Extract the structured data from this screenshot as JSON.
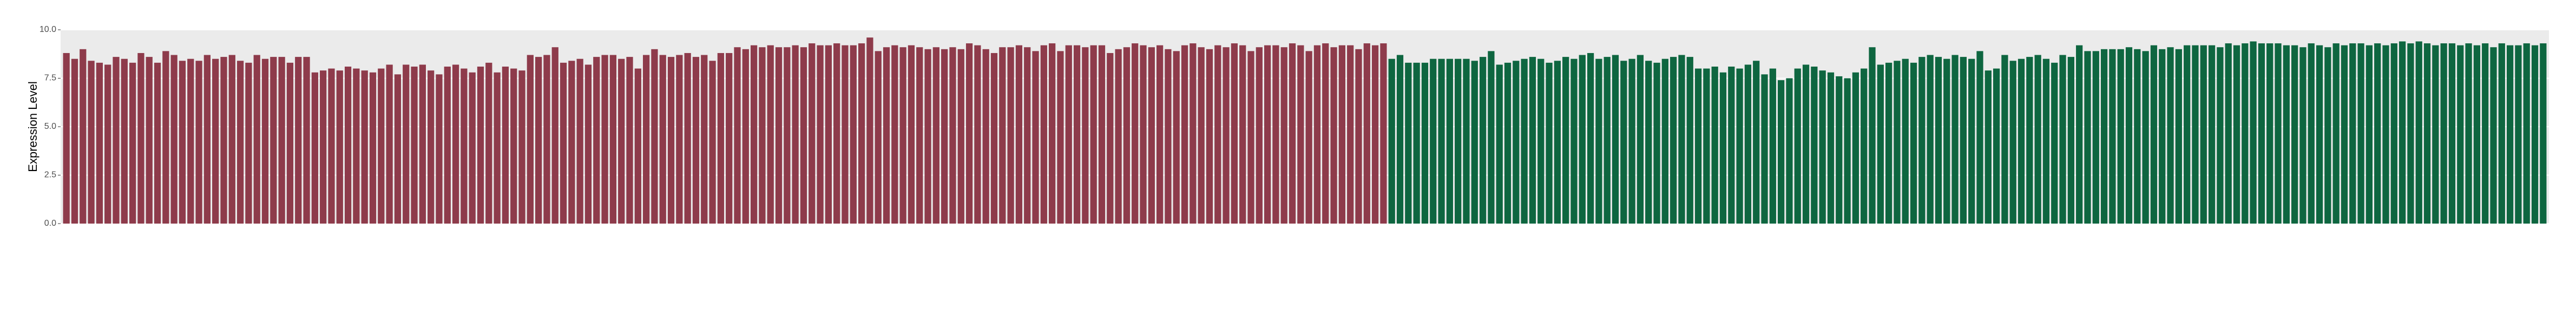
{
  "chart_data": {
    "type": "bar",
    "y_label": "Expression Level",
    "ylim": [
      0,
      10
    ],
    "yticks": [
      {
        "value": 0,
        "label": "0.0"
      },
      {
        "value": 2.5,
        "label": "2.5"
      },
      {
        "value": 5,
        "label": "5.0"
      },
      {
        "value": 7.5,
        "label": "7.5"
      },
      {
        "value": 10,
        "label": "10.0"
      }
    ],
    "grid": true,
    "series": [
      {
        "color": "#8e3b4b",
        "values": [
          8.8,
          8.5,
          9.0,
          8.4,
          8.3,
          8.2,
          8.6,
          8.5,
          8.3,
          8.8,
          8.6,
          8.3,
          8.9,
          8.7,
          8.4,
          8.5,
          8.4,
          8.7,
          8.5,
          8.6,
          8.7,
          8.4,
          8.3,
          8.7,
          8.5,
          8.6,
          8.6,
          8.3,
          8.6,
          8.6,
          7.8,
          7.9,
          8.0,
          7.9,
          8.1,
          8.0,
          7.9,
          7.8,
          8.0,
          8.2,
          7.7,
          8.2,
          8.1,
          8.2,
          7.9,
          7.7,
          8.1,
          8.2,
          8.0,
          7.8,
          8.1,
          8.3,
          7.8,
          8.1,
          8.0,
          7.9,
          8.7,
          8.6,
          8.7,
          9.1,
          8.3,
          8.4,
          8.5,
          8.2,
          8.6,
          8.7,
          8.7,
          8.5,
          8.6,
          8.0,
          8.7,
          9.0,
          8.7,
          8.6,
          8.7,
          8.8,
          8.6,
          8.7,
          8.4,
          8.8,
          8.8,
          9.1,
          9.0,
          9.2,
          9.1,
          9.2,
          9.1,
          9.1,
          9.2,
          9.1,
          9.3,
          9.2,
          9.2,
          9.3,
          9.2,
          9.2,
          9.3,
          9.6,
          8.9,
          9.1,
          9.2,
          9.1,
          9.2,
          9.1,
          9.0,
          9.1,
          9.0,
          9.1,
          9.0,
          9.3,
          9.2,
          9.0,
          8.8,
          9.1,
          9.1,
          9.2,
          9.1,
          8.9,
          9.2,
          9.3,
          8.9,
          9.2,
          9.2,
          9.1,
          9.2,
          9.2,
          8.8,
          9.0,
          9.1,
          9.3,
          9.2,
          9.1,
          9.2,
          9.0,
          8.9,
          9.2,
          9.3,
          9.1,
          9.0,
          9.2,
          9.1,
          9.3,
          9.2,
          8.9,
          9.1,
          9.2,
          9.2,
          9.1,
          9.3,
          9.2,
          8.9,
          9.2,
          9.3,
          9.1,
          9.2,
          9.2,
          9.0,
          9.3,
          9.2,
          9.3
        ]
      },
      {
        "color": "#0e6640",
        "values": [
          8.5,
          8.7,
          8.3,
          8.3,
          8.3,
          8.5,
          8.5,
          8.5,
          8.5,
          8.5,
          8.4,
          8.6,
          8.9,
          8.2,
          8.3,
          8.4,
          8.5,
          8.6,
          8.5,
          8.3,
          8.4,
          8.6,
          8.5,
          8.7,
          8.8,
          8.5,
          8.6,
          8.7,
          8.4,
          8.5,
          8.7,
          8.4,
          8.3,
          8.5,
          8.6,
          8.7,
          8.6,
          8.0,
          8.0,
          8.1,
          7.8,
          8.1,
          8.0,
          8.2,
          8.4,
          7.7,
          8.0,
          7.4,
          7.5,
          8.0,
          8.2,
          8.1,
          7.9,
          7.8,
          7.6,
          7.5,
          7.8,
          8.0,
          9.1,
          8.2,
          8.3,
          8.4,
          8.5,
          8.3,
          8.6,
          8.7,
          8.6,
          8.5,
          8.7,
          8.6,
          8.5,
          8.9,
          7.9,
          8.0,
          8.7,
          8.4,
          8.5,
          8.6,
          8.7,
          8.5,
          8.3,
          8.7,
          8.6,
          9.2,
          8.9,
          8.9,
          9.0,
          9.0,
          9.0,
          9.1,
          9.0,
          8.9,
          9.2,
          9.0,
          9.1,
          9.0,
          9.2,
          9.2,
          9.2,
          9.2,
          9.1,
          9.3,
          9.2,
          9.3,
          9.4,
          9.3,
          9.3,
          9.3,
          9.2,
          9.2,
          9.1,
          9.3,
          9.2,
          9.1,
          9.3,
          9.2,
          9.3,
          9.3,
          9.2,
          9.3,
          9.2,
          9.3,
          9.4,
          9.3,
          9.4,
          9.3,
          9.2,
          9.3,
          9.3,
          9.2,
          9.3,
          9.2,
          9.3,
          9.1,
          9.3,
          9.2,
          9.2,
          9.3,
          9.2,
          9.3
        ]
      }
    ]
  }
}
